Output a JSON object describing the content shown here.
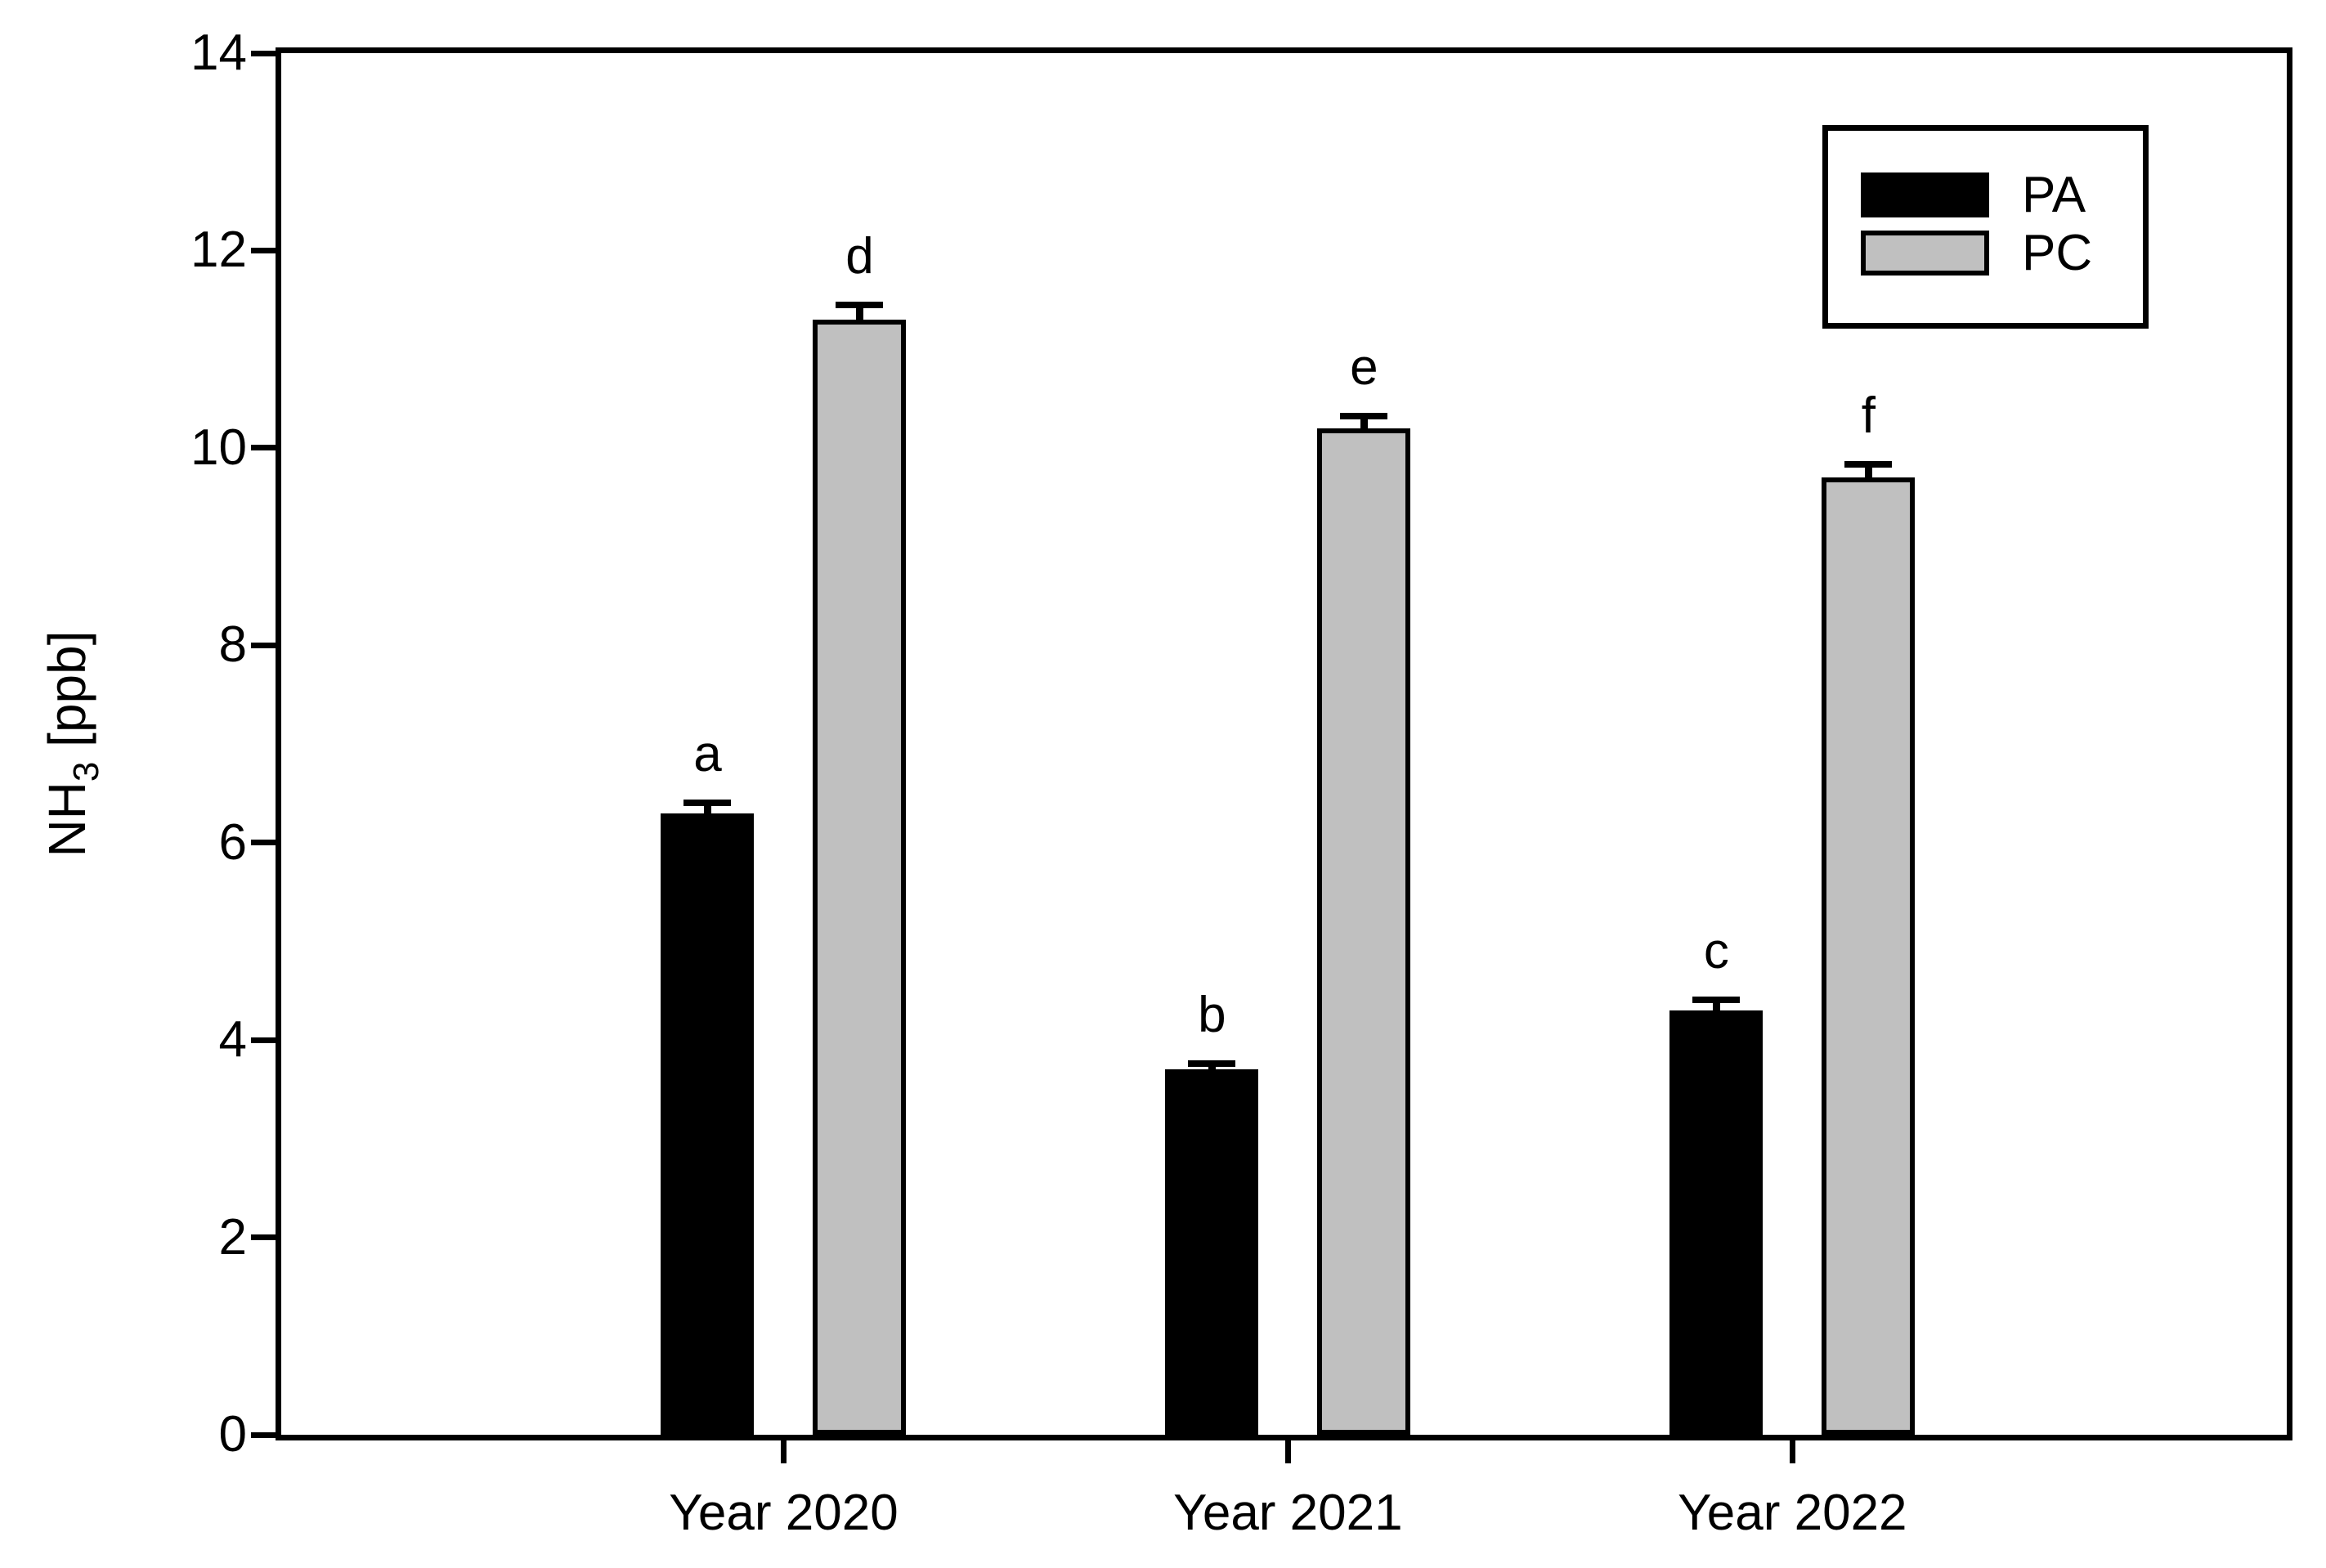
{
  "chart_data": {
    "type": "bar",
    "title": "",
    "xlabel": "",
    "ylabel": "NH3 [ppb]",
    "ylabel_parts": {
      "base": "NH",
      "subscript": "3",
      "suffix": " [ppb]"
    },
    "ylim": [
      0,
      14
    ],
    "yticks": [
      0,
      2,
      4,
      6,
      8,
      10,
      12,
      14
    ],
    "categories": [
      "Year 2020",
      "Year 2021",
      "Year 2022"
    ],
    "series": [
      {
        "name": "PA",
        "color": "#000000",
        "values": [
          6.3,
          3.7,
          4.3
        ],
        "errors": [
          0.1,
          0.06,
          0.11
        ],
        "letters": [
          "a",
          "b",
          "c"
        ]
      },
      {
        "name": "PC",
        "color": "#c0c0c0",
        "values": [
          11.3,
          10.2,
          9.7
        ],
        "errors": [
          0.15,
          0.12,
          0.13
        ],
        "letters": [
          "d",
          "e",
          "f"
        ]
      }
    ],
    "legend": {
      "position": "top-right",
      "entries": [
        "PA",
        "PC"
      ]
    },
    "grid": false,
    "frame": true,
    "axis_color": "#000000",
    "background_color": "#ffffff"
  }
}
